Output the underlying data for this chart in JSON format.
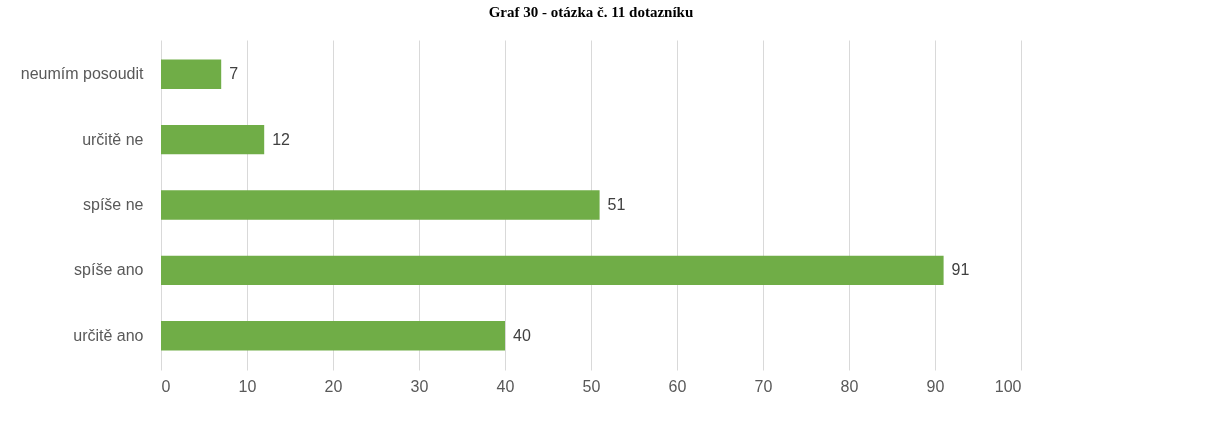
{
  "chart_data": {
    "type": "bar",
    "orientation": "horizontal",
    "title": "Graf 30 - otázka č. 11 dotazníku",
    "categories": [
      "neumím posoudit",
      "určitě ne",
      "spíše ne",
      "spíše ano",
      "určitě ano"
    ],
    "values": [
      7,
      12,
      51,
      91,
      40
    ],
    "color": "#70ad47",
    "xlim": [
      0,
      100
    ],
    "xticks": [
      0,
      10,
      20,
      30,
      40,
      50,
      60,
      70,
      80,
      90,
      100
    ],
    "grid": "x",
    "data_labels": true
  }
}
